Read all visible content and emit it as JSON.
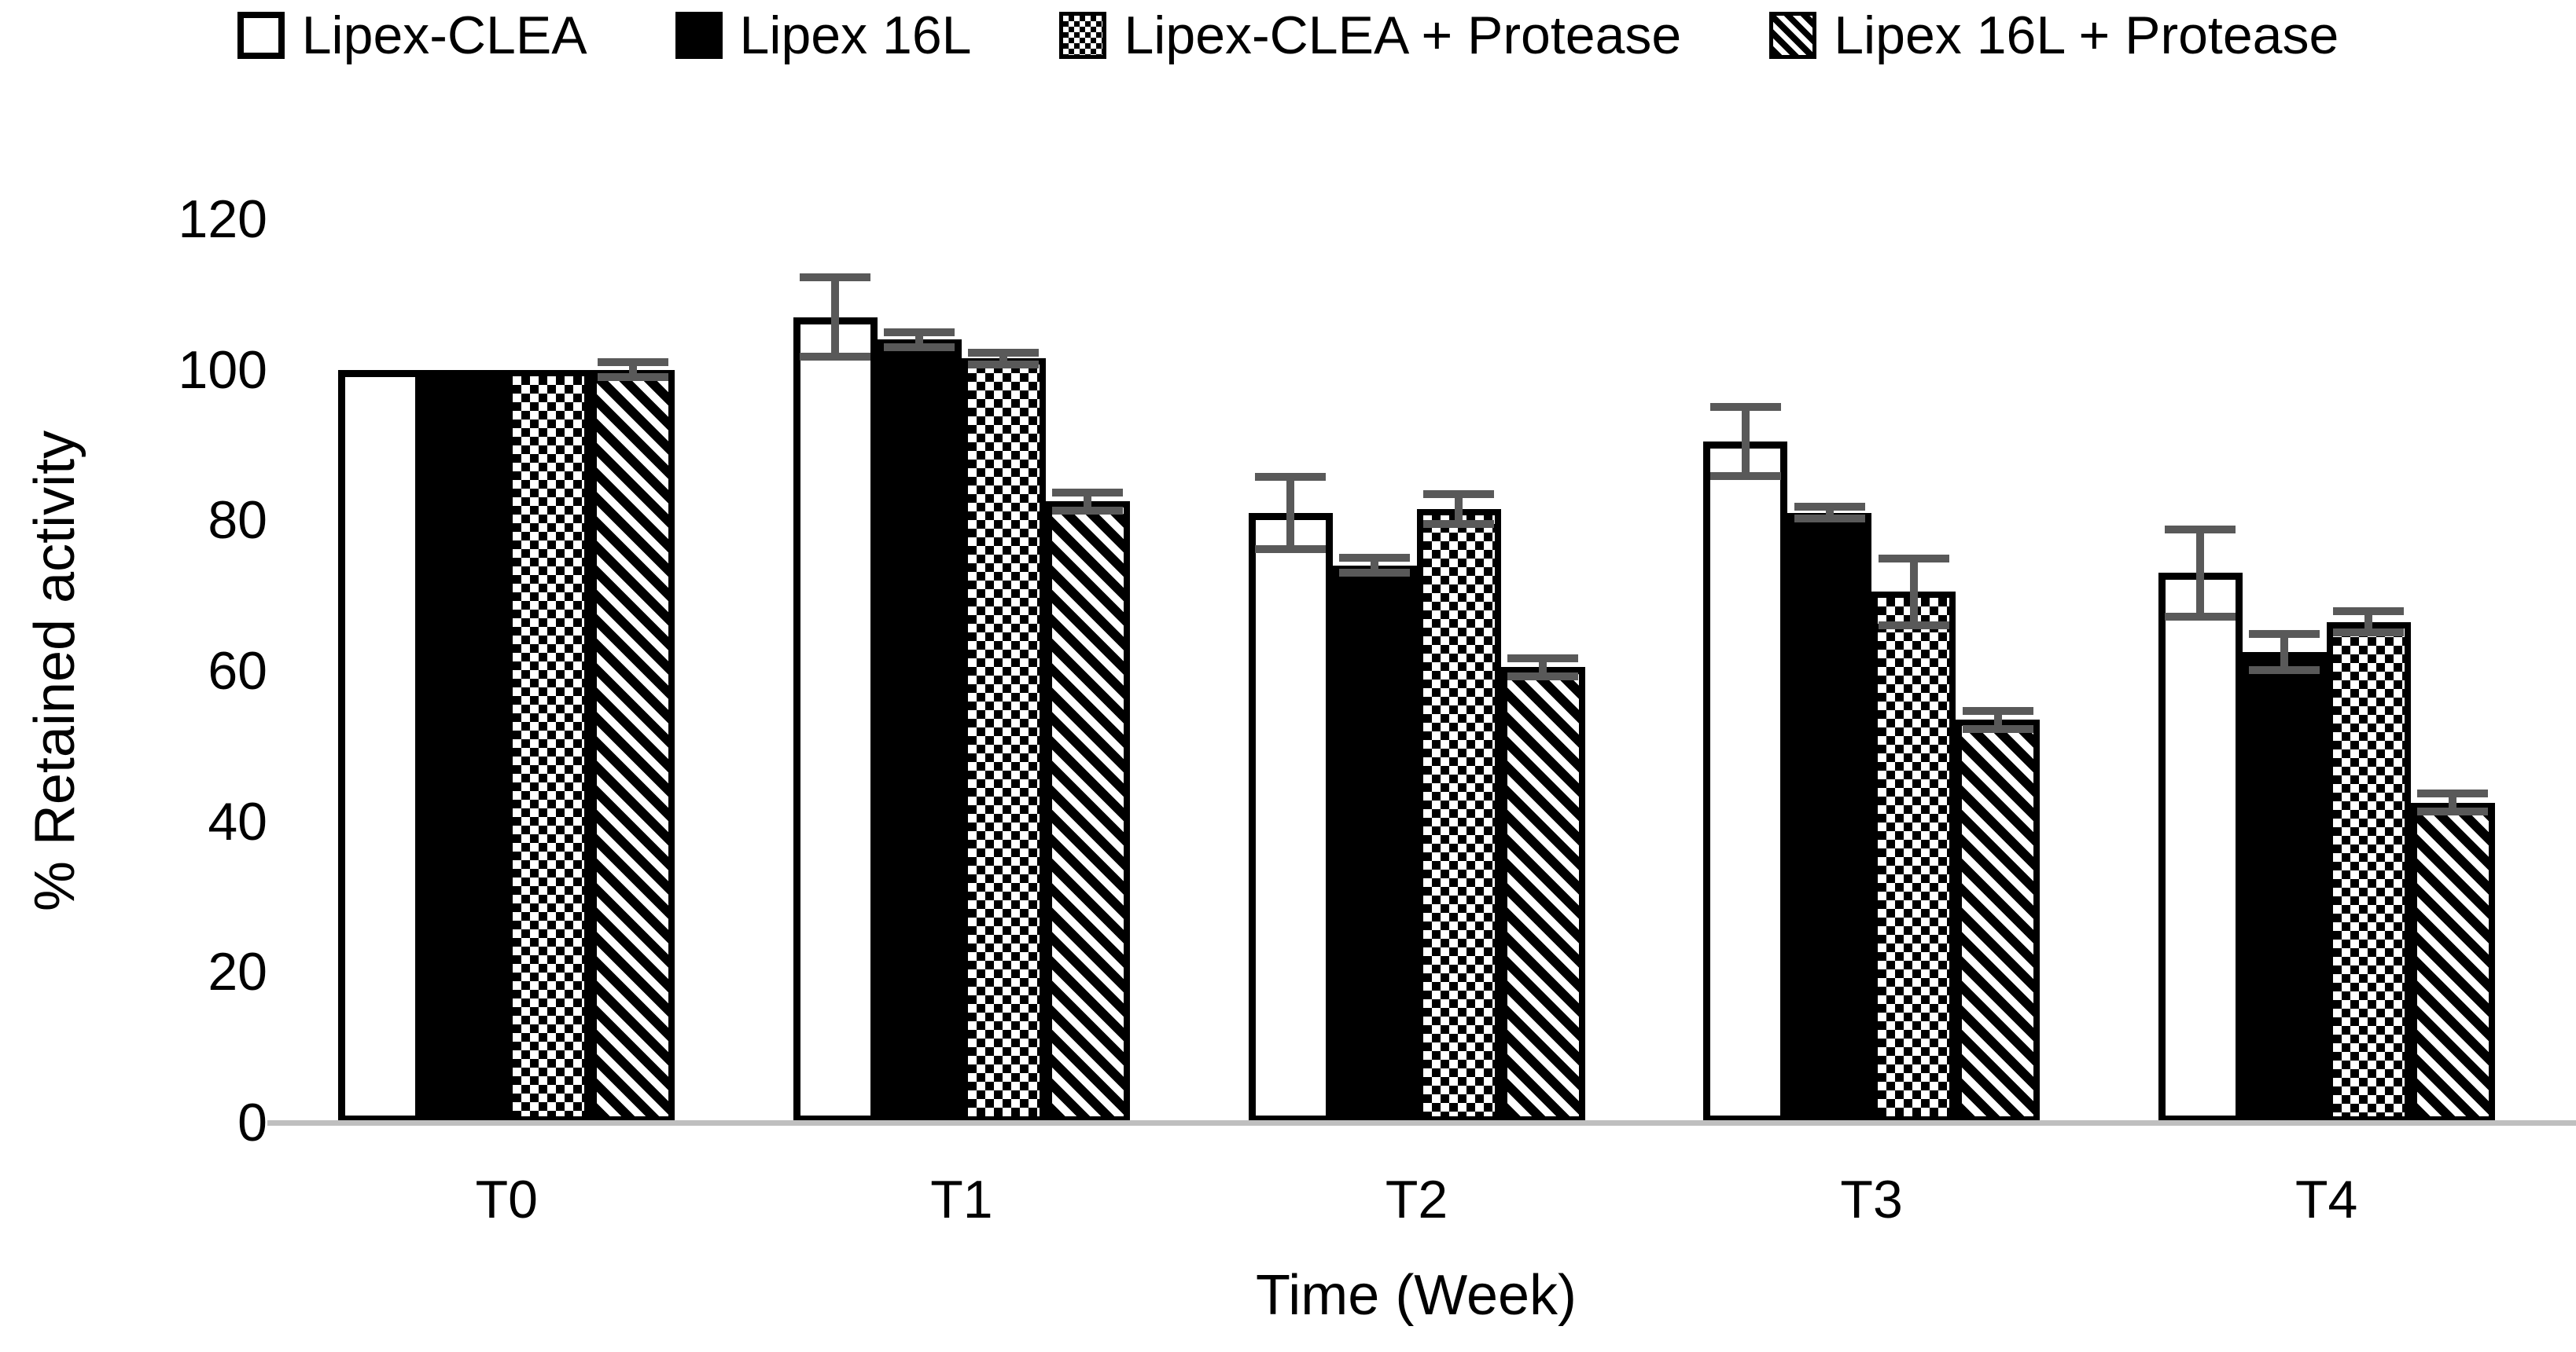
{
  "chart_data": {
    "type": "bar",
    "title": "",
    "xlabel": "Time (Week)",
    "ylabel": "% Retained activity",
    "ylim": [
      0,
      120
    ],
    "yticks": [
      0,
      20,
      40,
      60,
      80,
      100,
      120
    ],
    "grid": false,
    "legend_position": "top",
    "categories": [
      "T0",
      "T1",
      "T2",
      "T3",
      "T4"
    ],
    "series": [
      {
        "name": "Lipex-CLEA",
        "pattern": "white",
        "values": [
          100,
          107,
          81,
          90.5,
          73
        ],
        "errors": [
          0,
          5.3,
          4.8,
          4.6,
          5.8
        ]
      },
      {
        "name": "Lipex 16L",
        "pattern": "black",
        "values": [
          100,
          104,
          74,
          81,
          62.5
        ],
        "errors": [
          0,
          1,
          1,
          0.8,
          2.4
        ]
      },
      {
        "name": "Lipex-CLEA + Protease",
        "pattern": "checker",
        "values": [
          100,
          101.5,
          81.5,
          70.5,
          66.5
        ],
        "errors": [
          0,
          0.8,
          2,
          4.4,
          1.4
        ]
      },
      {
        "name": "Lipex 16L + Protease",
        "pattern": "diagonal",
        "values": [
          100,
          82.5,
          60.5,
          53.5,
          42.5
        ],
        "errors": [
          1,
          1.2,
          1.2,
          1.2,
          1.2
        ]
      }
    ],
    "colors": {
      "background": "#FFFFFF",
      "text": "#000000",
      "bar_border": "#000000",
      "error_bar": "#595959",
      "axis_line": "#BFBFBF"
    }
  }
}
